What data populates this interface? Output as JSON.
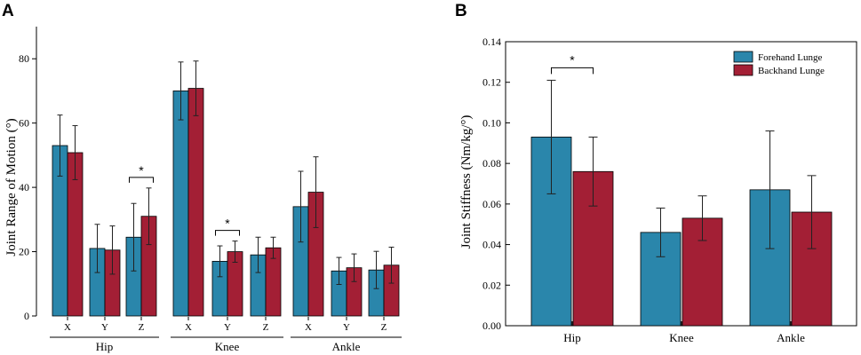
{
  "colors": {
    "forehand": "#2a86ab",
    "backhand": "#a31f35"
  },
  "chart_data": [
    {
      "panel": "A",
      "type": "bar",
      "ylabel": "Joint Range of  Motion (°)",
      "ylim": [
        0,
        90
      ],
      "yticks": [
        "0",
        "20",
        "40",
        "60",
        "80"
      ],
      "yticks_values": [
        0,
        20,
        40,
        60,
        80
      ],
      "groups": [
        "Hip",
        "Knee",
        "Ankle"
      ],
      "categories": [
        "X",
        "Y",
        "Z",
        "X",
        "Y",
        "Z",
        "X",
        "Y",
        "Z"
      ],
      "series": [
        {
          "name": "Forehand Lunge",
          "values": [
            53,
            21,
            24.5,
            70,
            17,
            19,
            34,
            14,
            14.3
          ],
          "errors": [
            9.5,
            7.5,
            10.5,
            9,
            4.8,
            5.5,
            11,
            4.2,
            5.8
          ]
        },
        {
          "name": "Backhand Lunge",
          "values": [
            50.8,
            20.5,
            31,
            70.8,
            20,
            21.2,
            38.5,
            15,
            15.8
          ],
          "errors": [
            8.4,
            7.5,
            8.8,
            8.5,
            3.3,
            3.3,
            11,
            4.3,
            5.6
          ]
        }
      ],
      "annotations": [
        {
          "text": "*",
          "category_index": 2
        },
        {
          "text": "*",
          "category_index": 4
        }
      ]
    },
    {
      "panel": "B",
      "type": "bar",
      "ylabel": "Joint Stiffness (Nm/kg/°)",
      "ylim": [
        0,
        0.14
      ],
      "yticks": [
        "0.00",
        "0.02",
        "0.04",
        "0.06",
        "0.08",
        "0.10",
        "0.12",
        "0.14"
      ],
      "yticks_values": [
        0,
        0.02,
        0.04,
        0.06,
        0.08,
        0.1,
        0.12,
        0.14
      ],
      "categories": [
        "Hip",
        "Knee",
        "Ankle"
      ],
      "series": [
        {
          "name": "Forehand Lunge",
          "values": [
            0.093,
            0.046,
            0.067
          ],
          "errors": [
            0.028,
            0.012,
            0.029
          ]
        },
        {
          "name": "Backhand Lunge",
          "values": [
            0.076,
            0.053,
            0.056
          ],
          "errors": [
            0.017,
            0.011,
            0.018
          ]
        }
      ],
      "legend": {
        "position": "top-right",
        "entries": [
          "Forehand Lunge",
          "Backhand Lunge"
        ]
      },
      "annotations": [
        {
          "text": "*",
          "category_index": 0
        }
      ]
    }
  ]
}
